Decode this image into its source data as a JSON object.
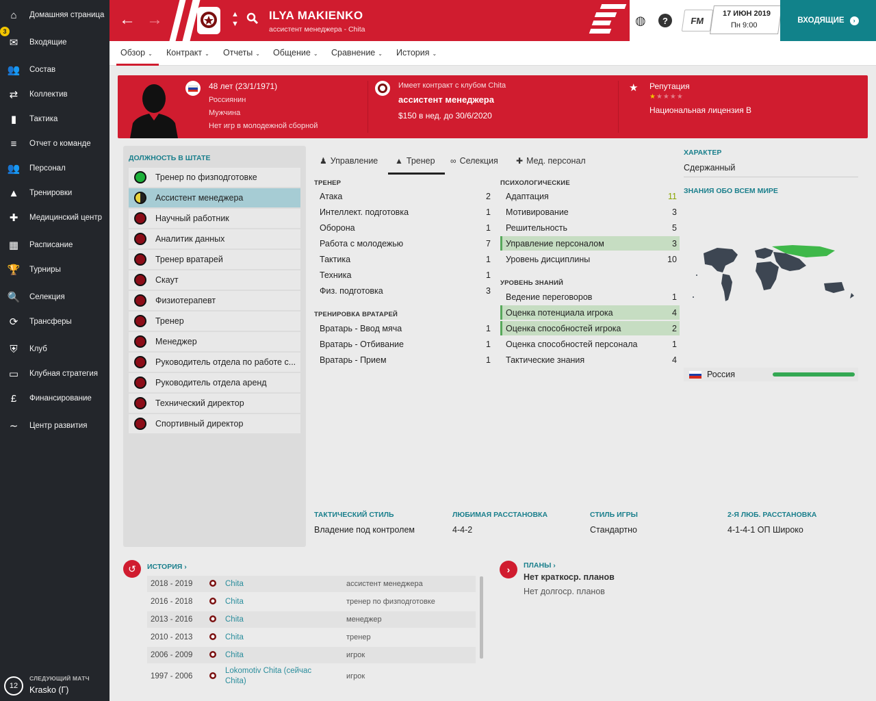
{
  "sidebar": {
    "items": [
      {
        "label": "Домашняя страница",
        "icon": "⌂"
      },
      {
        "label": "Входящие",
        "icon": "✉",
        "badge": "3"
      },
      {
        "label": "Состав",
        "icon": "👥"
      },
      {
        "label": "Коллектив",
        "icon": "⇄"
      },
      {
        "label": "Тактика",
        "icon": "▮"
      },
      {
        "label": "Отчет о команде",
        "icon": "≡"
      },
      {
        "label": "Персонал",
        "icon": "👥"
      },
      {
        "label": "Тренировки",
        "icon": "▲"
      },
      {
        "label": "Медицинский центр",
        "icon": "✚"
      },
      {
        "label": "Расписание",
        "icon": "▦"
      },
      {
        "label": "Турниры",
        "icon": "🏆"
      },
      {
        "label": "Селекция",
        "icon": "🔍"
      },
      {
        "label": "Трансферы",
        "icon": "⟳"
      },
      {
        "label": "Клуб",
        "icon": "⛨"
      },
      {
        "label": "Клубная стратегия",
        "icon": "▭"
      },
      {
        "label": "Финансирование",
        "icon": "£"
      },
      {
        "label": "Центр развития",
        "icon": "∼"
      }
    ],
    "next_match": {
      "label": "СЛЕДУЮЩИЙ МАТЧ",
      "number": "12",
      "value": "Krasko (Г)"
    }
  },
  "header": {
    "name": "ILYA MAKIENKO",
    "subtitle": "ассистент менеджера - Chita",
    "fm_label": "FM",
    "date": "17 ИЮН 2019",
    "time": "Пн 9:00",
    "inbox_label": "ВХОДЯЩИЕ"
  },
  "tabs": [
    "Обзор",
    "Контракт",
    "Отчеты",
    "Общение",
    "Сравнение",
    "История"
  ],
  "banner": {
    "age": "48 лет (23/1/1971)",
    "nationality": "Россиянин",
    "gender": "Мужчина",
    "youth": "Нет игр в молодежной сборной",
    "contract_label": "Имеет контракт с клубом Chita",
    "contract_role": "ассистент менеджера",
    "contract_wage": "$150 в нед. до 30/6/2020",
    "reputation_label": "Репутация",
    "reputation_stars": 0.5,
    "license": "Национальная лицензия B"
  },
  "staff": {
    "title": "ДОЛЖНОСТЬ В ШТАТЕ",
    "roles": [
      {
        "label": "Тренер по физподготовке",
        "status": "green"
      },
      {
        "label": "Ассистент менеджера",
        "status": "half",
        "selected": true
      },
      {
        "label": "Научный работник",
        "status": "red"
      },
      {
        "label": "Аналитик данных",
        "status": "red"
      },
      {
        "label": "Тренер вратарей",
        "status": "red"
      },
      {
        "label": "Скаут",
        "status": "red"
      },
      {
        "label": "Физиотерапевт",
        "status": "red"
      },
      {
        "label": "Тренер",
        "status": "red"
      },
      {
        "label": "Менеджер",
        "status": "red"
      },
      {
        "label": "Руководитель отдела по работе с...",
        "status": "red"
      },
      {
        "label": "Руководитель отдела аренд",
        "status": "red"
      },
      {
        "label": "Технический директор",
        "status": "red"
      },
      {
        "label": "Спортивный директор",
        "status": "red"
      }
    ]
  },
  "main_tabs": [
    "Управление",
    "Тренер",
    "Селекция",
    "Мед. персонал"
  ],
  "coach": {
    "header": "ТРЕНЕР",
    "attrs": [
      {
        "name": "Атака",
        "value": "2"
      },
      {
        "name": "Интеллект. подготовка",
        "value": "1"
      },
      {
        "name": "Оборона",
        "value": "1"
      },
      {
        "name": "Работа с молодежью",
        "value": "7"
      },
      {
        "name": "Тактика",
        "value": "1"
      },
      {
        "name": "Техника",
        "value": "1"
      },
      {
        "name": "Физ. подготовка",
        "value": "3"
      }
    ]
  },
  "gk": {
    "header": "ТРЕНИРОВКА ВРАТАРЕЙ",
    "attrs": [
      {
        "name": "Вратарь - Ввод мяча",
        "value": "1"
      },
      {
        "name": "Вратарь - Отбивание",
        "value": "1"
      },
      {
        "name": "Вратарь - Прием",
        "value": "1"
      }
    ]
  },
  "psych": {
    "header": "ПСИХОЛОГИЧЕСКИЕ",
    "attrs": [
      {
        "name": "Адаптация",
        "value": "11",
        "color": "#8aa500"
      },
      {
        "name": "Мотивирование",
        "value": "3"
      },
      {
        "name": "Решительность",
        "value": "5"
      },
      {
        "name": "Управление персоналом",
        "value": "3",
        "highlight": true
      },
      {
        "name": "Уровень дисциплины",
        "value": "10"
      }
    ]
  },
  "knowledge": {
    "header": "УРОВЕНЬ ЗНАНИЙ",
    "attrs": [
      {
        "name": "Ведение переговоров",
        "value": "1"
      },
      {
        "name": "Оценка потенциала игрока",
        "value": "4",
        "highlight": true
      },
      {
        "name": "Оценка способностей игрока",
        "value": "2",
        "highlight": true
      },
      {
        "name": "Оценка способностей персонала",
        "value": "1"
      },
      {
        "name": "Тактические знания",
        "value": "4"
      }
    ]
  },
  "character": {
    "header": "ХАРАКТЕР",
    "value": "Сдержанный"
  },
  "world_knowledge": {
    "header": "ЗНАНИЯ ОБО ВСЕМ МИРЕ",
    "country": "Россия",
    "level": 1.0
  },
  "style": [
    {
      "header": "ТАКТИЧЕСКИЙ СТИЛЬ",
      "value": "Владение под контролем"
    },
    {
      "header": "ЛЮБИМАЯ РАССТАНОВКА",
      "value": "4-4-2"
    },
    {
      "header": "СТИЛЬ ИГРЫ",
      "value": "Стандартно"
    },
    {
      "header": "2-Я ЛЮБ. РАССТАНОВКА",
      "value": "4-1-4-1 ОП Широко"
    }
  ],
  "history": {
    "title": "ИСТОРИЯ",
    "rows": [
      {
        "years": "2018 - 2019",
        "club": "Chita",
        "role": "ассистент менеджера"
      },
      {
        "years": "2016 - 2018",
        "club": "Chita",
        "role": "тренер по физподготовке"
      },
      {
        "years": "2013 - 2016",
        "club": "Chita",
        "role": "менеджер"
      },
      {
        "years": "2010 - 2013",
        "club": "Chita",
        "role": "тренер"
      },
      {
        "years": "2006 - 2009",
        "club": "Chita",
        "role": "игрок"
      },
      {
        "years": "1997 - 2006",
        "club": "Lokomotiv Chita (сейчас Chita)",
        "role": "игрок"
      }
    ]
  },
  "plans": {
    "title": "ПЛАНЫ",
    "short": "Нет краткоср. планов",
    "long": "Нет долгоср. планов"
  },
  "colors": {
    "brand_red": "#d01c2f",
    "teal": "#11828a",
    "sidebar": "#23262b",
    "highlight_green": "#c6ddc2"
  }
}
